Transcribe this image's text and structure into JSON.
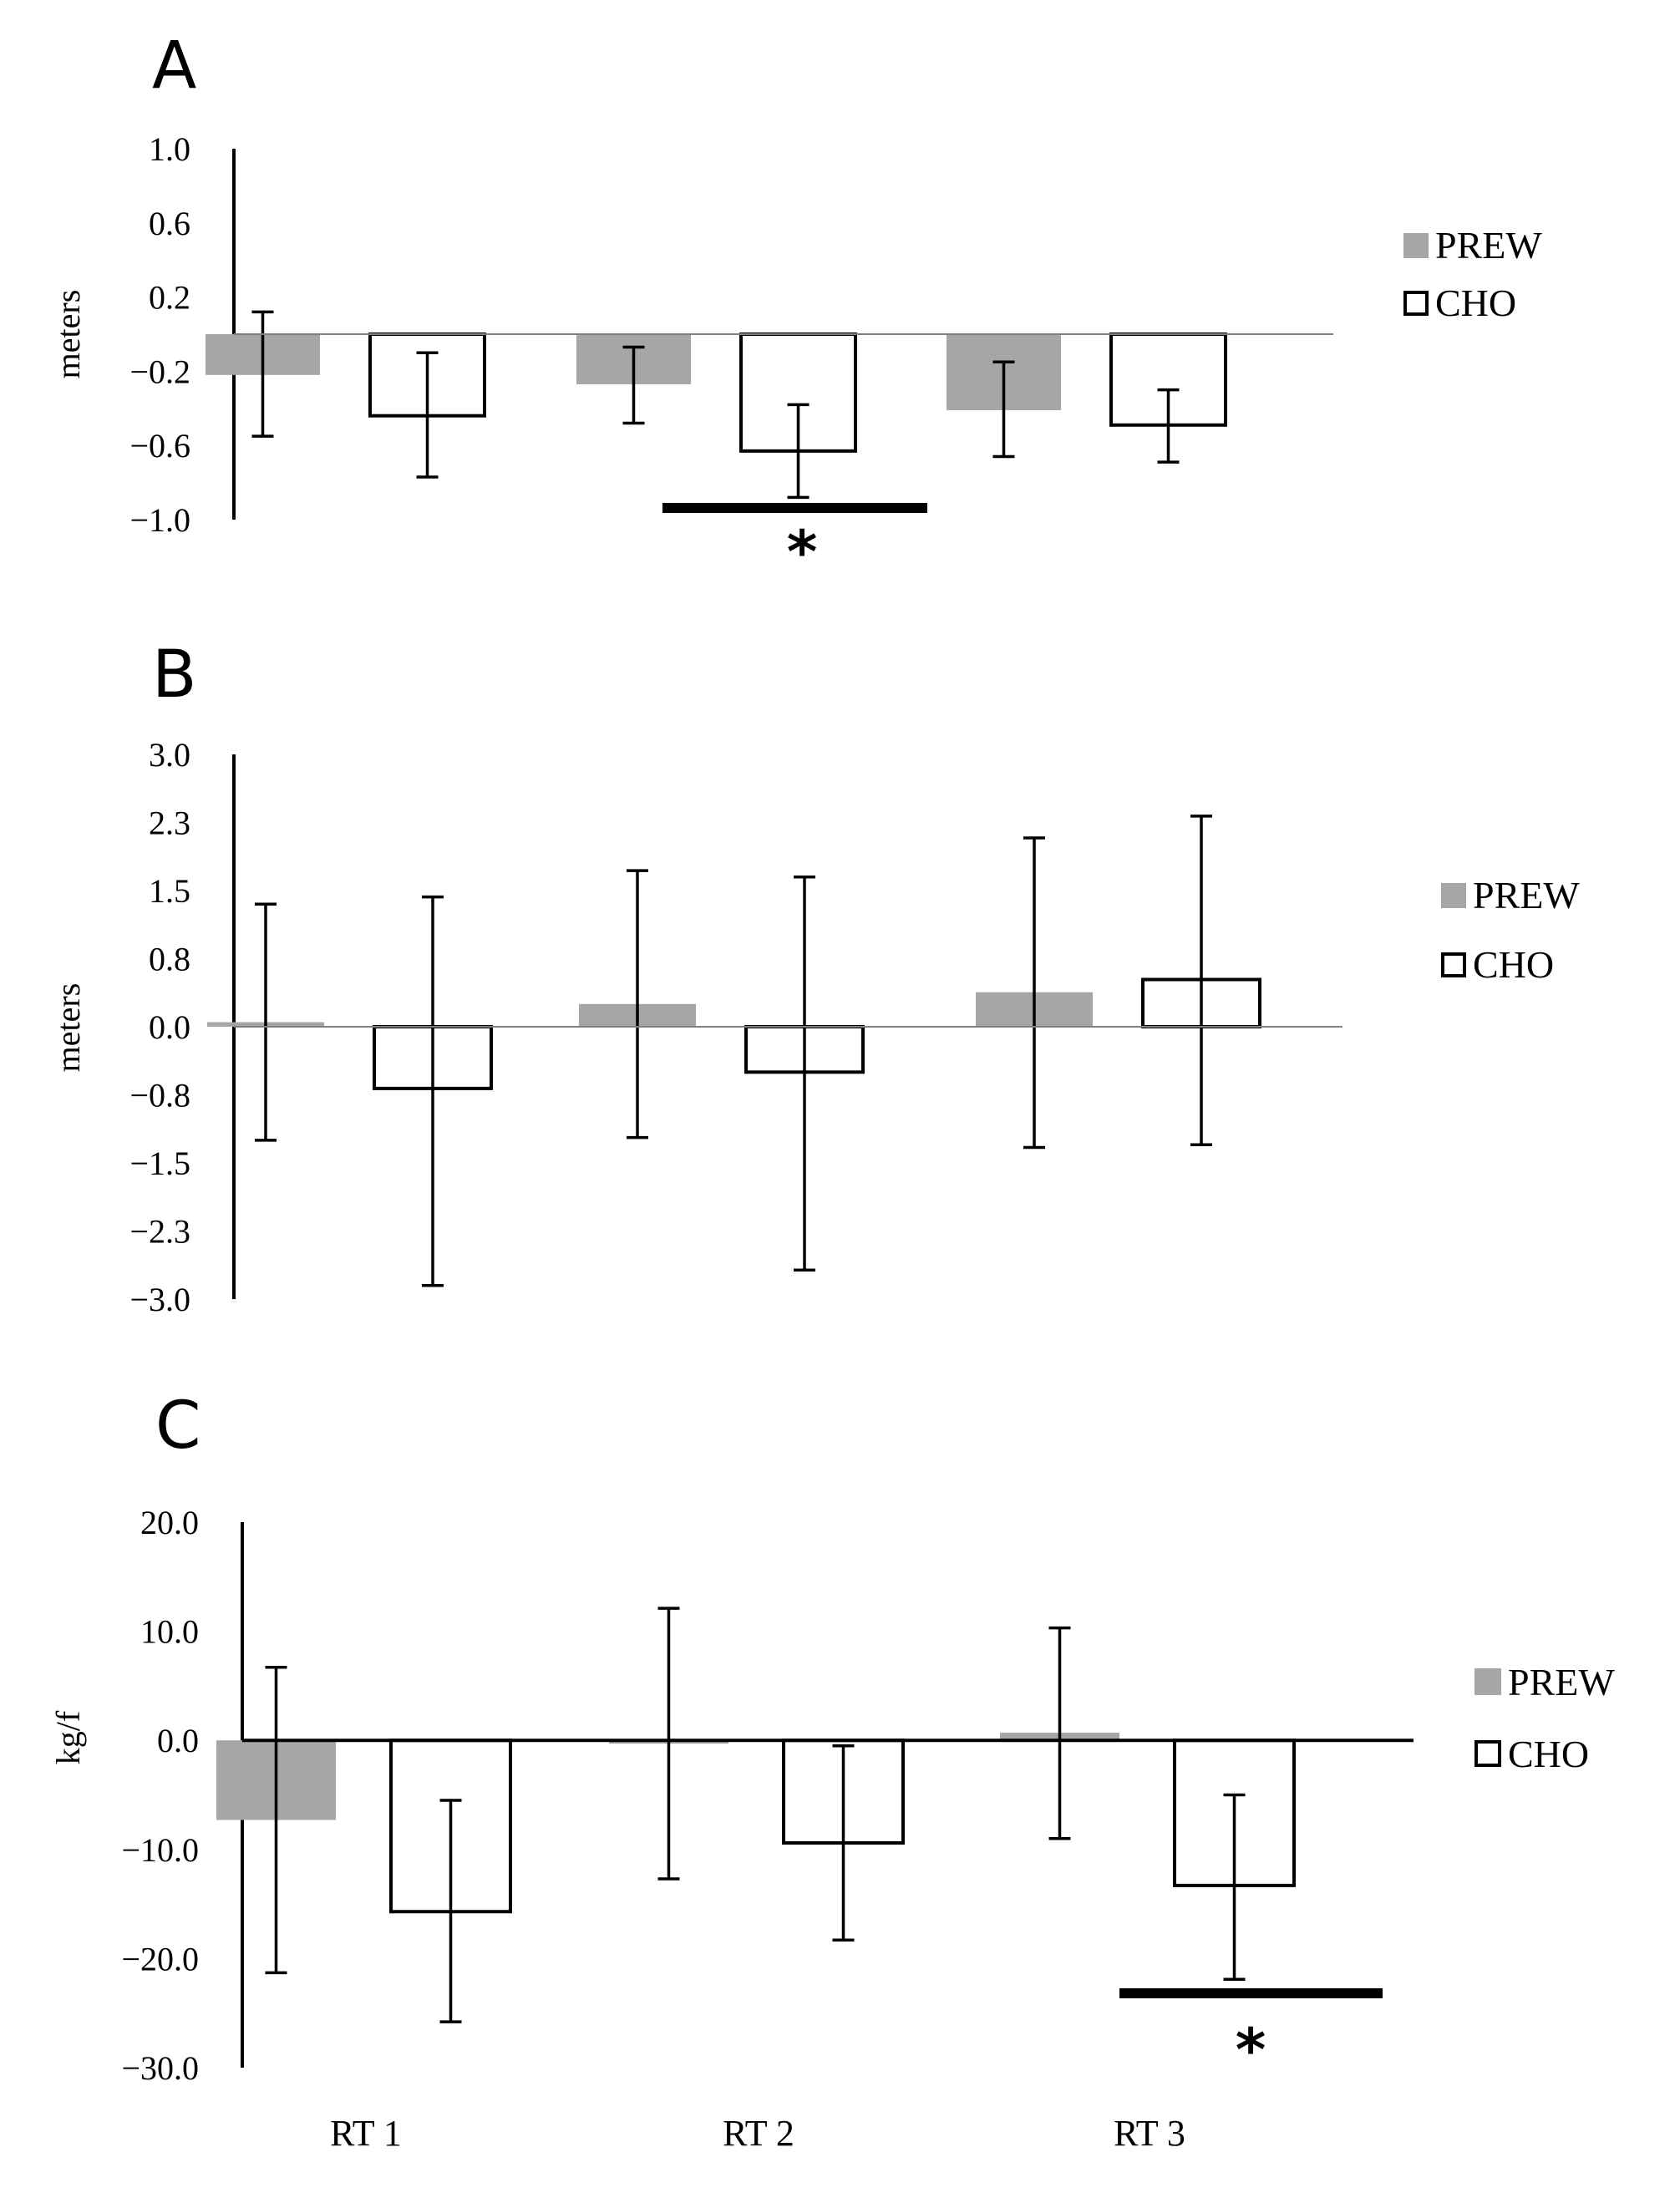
{
  "chart_data": [
    {
      "type": "bar",
      "panel": "A",
      "categories": [
        "RT 1",
        "RT 2",
        "RT 3"
      ],
      "series": [
        {
          "name": "PREW",
          "color": "#a6a6a6",
          "values": [
            -0.22,
            -0.27,
            -0.41
          ],
          "err_low": [
            -0.55,
            -0.48,
            -0.66
          ],
          "err_high": [
            0.12,
            -0.07,
            -0.15
          ]
        },
        {
          "name": "CHO",
          "color": "#ffffff",
          "values": [
            -0.44,
            -0.63,
            -0.49
          ],
          "err_low": [
            -0.77,
            -0.88,
            -0.69
          ],
          "err_high": [
            -0.1,
            -0.38,
            -0.3
          ]
        }
      ],
      "ylabel": "meters",
      "ylim": [
        -1.0,
        1.0
      ],
      "yticks": [
        "1.0",
        "0.6",
        "0.2",
        "−0.2",
        "−0.6",
        "−1.0"
      ],
      "significance": {
        "category": "RT 2",
        "label": "*"
      }
    },
    {
      "type": "bar",
      "panel": "B",
      "categories": [
        "RT 1",
        "RT 2",
        "RT 3"
      ],
      "series": [
        {
          "name": "PREW",
          "color": "#a6a6a6",
          "values": [
            0.05,
            0.25,
            0.38
          ],
          "err_low": [
            -1.25,
            -1.22,
            -1.33
          ],
          "err_high": [
            1.35,
            1.72,
            2.08
          ]
        },
        {
          "name": "CHO",
          "color": "#ffffff",
          "values": [
            -0.68,
            -0.5,
            0.52
          ],
          "err_low": [
            -2.85,
            -2.68,
            -1.3
          ],
          "err_high": [
            1.43,
            1.65,
            2.32
          ]
        }
      ],
      "ylabel": "meters",
      "ylim": [
        -3.0,
        3.0
      ],
      "yticks": [
        "3.0",
        "2.3",
        "1.5",
        "0.8",
        "0.0",
        "−0.8",
        "−1.5",
        "−2.3",
        "−3.0"
      ]
    },
    {
      "type": "bar",
      "panel": "C",
      "categories": [
        "RT 1",
        "RT 2",
        "RT 3"
      ],
      "series": [
        {
          "name": "PREW",
          "color": "#a6a6a6",
          "values": [
            -7.3,
            -0.3,
            0.7
          ],
          "err_low": [
            -21.3,
            -12.7,
            -9.0
          ],
          "err_high": [
            6.7,
            12.1,
            10.3
          ]
        },
        {
          "name": "CHO",
          "color": "#ffffff",
          "values": [
            -15.7,
            -9.4,
            -13.3
          ],
          "err_low": [
            -25.8,
            -18.3,
            -21.9
          ],
          "err_high": [
            -5.5,
            -0.5,
            -5.0
          ]
        }
      ],
      "ylabel": "kg/f",
      "ylim": [
        -30.0,
        20.0
      ],
      "yticks": [
        "20.0",
        "10.0",
        "0.0",
        "−10.0",
        "−20.0",
        "−30.0"
      ],
      "xlabels_shown": [
        "RT 1",
        "RT 2",
        "RT 3"
      ],
      "significance": {
        "category": "RT 3",
        "label": "*"
      }
    }
  ],
  "legend": {
    "prew": "PREW",
    "cho": "CHO"
  }
}
